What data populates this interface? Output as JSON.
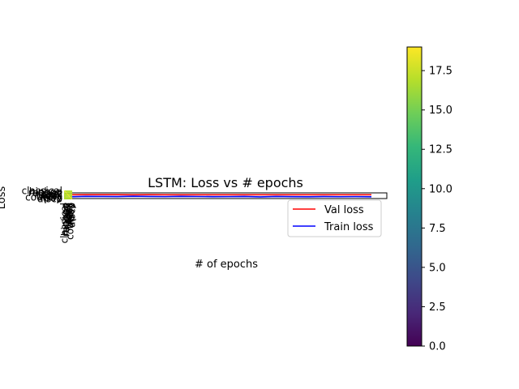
{
  "chart_data": {
    "type": "line",
    "title": "LSTM: Loss vs # epochs",
    "xlabel": "# of epochs",
    "ylabel": "Loss",
    "categories": [
      "classical",
      "hiphop",
      "reggae",
      "jazz",
      "metal",
      "rock",
      "blues",
      "country",
      "pop",
      "disco"
    ],
    "series": [
      {
        "name": "Val loss",
        "color": "#ff0000",
        "values": [
          0.72,
          0.74,
          0.73,
          0.73,
          0.72,
          0.73,
          0.72,
          0.72,
          0.71,
          0.72,
          0.72,
          0.71,
          0.72,
          0.72,
          0.71,
          0.72,
          0.71,
          0.72,
          0.72,
          0.71
        ]
      },
      {
        "name": "Train loss",
        "color": "#0000ff",
        "values": [
          0.3,
          0.38,
          0.36,
          0.34,
          0.4,
          0.36,
          0.33,
          0.38,
          0.35,
          0.32,
          0.33,
          0.36,
          0.28,
          0.36,
          0.32,
          0.3,
          0.34,
          0.31,
          0.33,
          0.3
        ]
      }
    ],
    "x": [
      0,
      1,
      2,
      3,
      4,
      5,
      6,
      7,
      8,
      9,
      10,
      11,
      12,
      13,
      14,
      15,
      16,
      17,
      18,
      19
    ],
    "legend": {
      "placement": "lower-right"
    },
    "colorbar": {
      "colormap": "viridis",
      "range": [
        0,
        19
      ],
      "ticks": [
        "0.0",
        "2.5",
        "5.0",
        "7.5",
        "10.0",
        "12.5",
        "15.0",
        "17.5"
      ],
      "colors": [
        "#440154",
        "#482878",
        "#3e4989",
        "#31688e",
        "#26828e",
        "#1f9e89",
        "#35b779",
        "#6ece58",
        "#b5de2b",
        "#fde725"
      ]
    }
  }
}
